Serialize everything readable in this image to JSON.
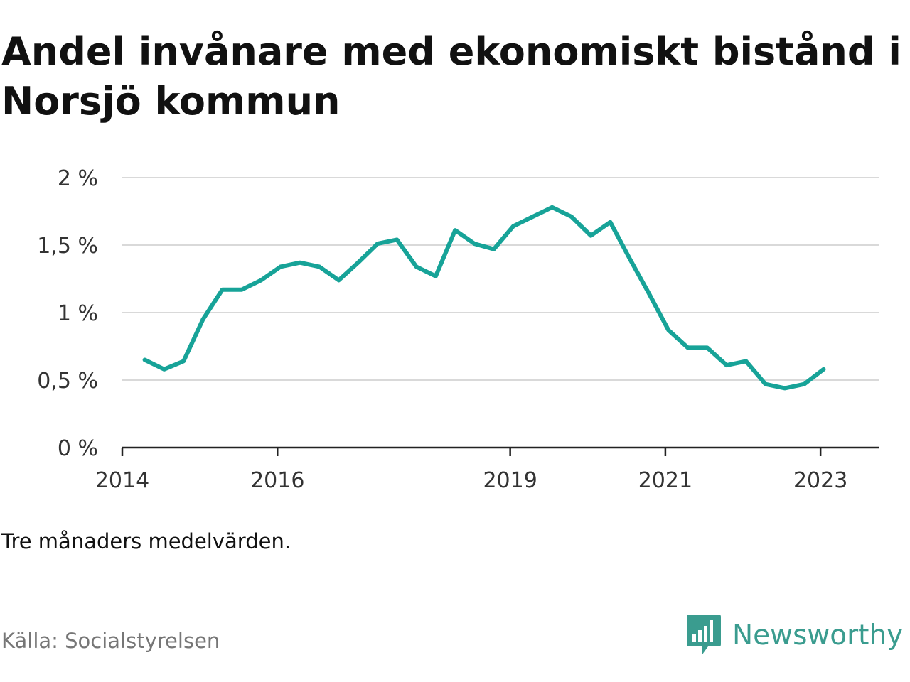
{
  "title": "Andel invånare med ekonomiskt bistånd i Norsjö kommun",
  "note": "Tre månaders medelvärden.",
  "source": "Källa: Socialstyrelsen",
  "brand": {
    "name": "Newsworthy",
    "color": "#3a9c8f",
    "icon": "newsworthy-bar-chart-logo-icon"
  },
  "colors": {
    "line": "#17a398",
    "grid": "#d9d9d9",
    "axis": "#222222",
    "tick_text": "#333333"
  },
  "chart_data": {
    "type": "line",
    "title": "Andel invånare med ekonomiskt bistånd i Norsjö kommun",
    "xlabel": "",
    "ylabel": "",
    "ylim": [
      0,
      2
    ],
    "y_ticks": [
      0,
      0.5,
      1,
      1.5,
      2
    ],
    "y_tick_labels": [
      "0 %",
      "0,5 %",
      "1 %",
      "1,5 %",
      "2 %"
    ],
    "x_range": [
      2014.0,
      2023.75
    ],
    "x_ticks": [
      2014,
      2016,
      2019,
      2021,
      2023
    ],
    "x_tick_labels": [
      "2014",
      "2016",
      "2019",
      "2021",
      "2023"
    ],
    "grid": true,
    "series": [
      {
        "values": [
          {
            "x": 2014.29,
            "y": 0.65
          },
          {
            "x": 2014.54,
            "y": 0.58
          },
          {
            "x": 2014.79,
            "y": 0.64
          },
          {
            "x": 2015.04,
            "y": 0.95
          },
          {
            "x": 2015.29,
            "y": 1.17
          },
          {
            "x": 2015.54,
            "y": 1.17
          },
          {
            "x": 2015.79,
            "y": 1.24
          },
          {
            "x": 2016.04,
            "y": 1.34
          },
          {
            "x": 2016.29,
            "y": 1.37
          },
          {
            "x": 2016.54,
            "y": 1.34
          },
          {
            "x": 2016.79,
            "y": 1.24
          },
          {
            "x": 2017.04,
            "y": 1.37
          },
          {
            "x": 2017.29,
            "y": 1.51
          },
          {
            "x": 2017.54,
            "y": 1.54
          },
          {
            "x": 2017.79,
            "y": 1.34
          },
          {
            "x": 2018.04,
            "y": 1.27
          },
          {
            "x": 2018.29,
            "y": 1.61
          },
          {
            "x": 2018.54,
            "y": 1.51
          },
          {
            "x": 2018.79,
            "y": 1.47
          },
          {
            "x": 2019.04,
            "y": 1.64
          },
          {
            "x": 2019.29,
            "y": 1.71
          },
          {
            "x": 2019.54,
            "y": 1.78
          },
          {
            "x": 2019.79,
            "y": 1.71
          },
          {
            "x": 2020.04,
            "y": 1.57
          },
          {
            "x": 2020.29,
            "y": 1.67
          },
          {
            "x": 2020.54,
            "y": 1.4
          },
          {
            "x": 2020.79,
            "y": 1.14
          },
          {
            "x": 2021.04,
            "y": 0.87
          },
          {
            "x": 2021.29,
            "y": 0.74
          },
          {
            "x": 2021.54,
            "y": 0.74
          },
          {
            "x": 2021.79,
            "y": 0.61
          },
          {
            "x": 2022.04,
            "y": 0.64
          },
          {
            "x": 2022.29,
            "y": 0.47
          },
          {
            "x": 2022.54,
            "y": 0.44
          },
          {
            "x": 2022.79,
            "y": 0.47
          },
          {
            "x": 2023.04,
            "y": 0.58
          }
        ]
      }
    ]
  }
}
